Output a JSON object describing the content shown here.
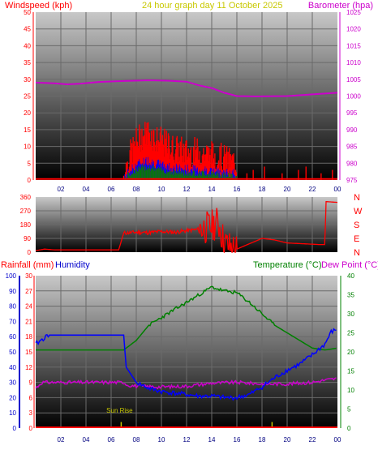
{
  "header": {
    "windspeed_label": "Windspeed (kph)",
    "title": "24 hour graph day   11 October 2025",
    "barometer_label": "Barometer (hpa)",
    "rainfall_label": "Rainfall (mm)",
    "humidity_label": "Humidity",
    "temperature_label": "Temperature (°C)",
    "dewpoint_label": "Dew Point (°C)"
  },
  "colors": {
    "wind": "#ff0000",
    "gust_blue": "#0000ff",
    "gust_green": "#008000",
    "barometer": "#cc00cc",
    "rain": "#ff0000",
    "humidity": "#0000ff",
    "temperature": "#008000",
    "dewpoint": "#cc00cc",
    "sunrise": "#c8c800"
  },
  "chart_data": [
    {
      "type": "area",
      "x_ticks": [
        "02",
        "04",
        "06",
        "08",
        "10",
        "12",
        "14",
        "16",
        "18",
        "20",
        "22",
        "00"
      ],
      "y_left_ticks": [
        "0",
        "5",
        "10",
        "15",
        "20",
        "25",
        "30",
        "35",
        "40",
        "45",
        "50"
      ],
      "y_right_ticks": [
        "975",
        "980",
        "985",
        "990",
        "995",
        "1000",
        "1005",
        "1010",
        "1015",
        "1020",
        "1025"
      ],
      "ylim_left": [
        0,
        50
      ],
      "ylim_right": [
        975,
        1025
      ],
      "series": [
        {
          "name": "Windspeed (kph)",
          "x": [
            0,
            7,
            7.5,
            8,
            8.5,
            9,
            9.5,
            10,
            11,
            12,
            13,
            14,
            15,
            15.5,
            16,
            16.1,
            24
          ],
          "values": [
            0,
            0,
            6,
            10,
            12,
            13,
            11,
            10,
            8,
            7,
            7,
            6,
            5,
            4,
            4,
            0,
            0
          ]
        },
        {
          "name": "Barometer (hpa)",
          "x": [
            0,
            1.5,
            2.5,
            3.5,
            5,
            7,
            9,
            10.5,
            12,
            13,
            14,
            15,
            16,
            17.5,
            20,
            22,
            24
          ],
          "values": [
            1004,
            1003.8,
            1003.5,
            1003.7,
            1004.2,
            1004.5,
            1004.7,
            1004.6,
            1004.3,
            1003.2,
            1002.4,
            1001,
            1000,
            999.9,
            1000,
            1000.5,
            1001
          ]
        }
      ]
    },
    {
      "type": "scatter",
      "x_ticks": [
        "02",
        "04",
        "06",
        "08",
        "10",
        "12",
        "14",
        "16",
        "18",
        "20",
        "22",
        "00"
      ],
      "y_left_ticks": [
        "0",
        "90",
        "180",
        "270",
        "360"
      ],
      "y_right_ticks": [
        "N",
        "W",
        "S",
        "E",
        "N"
      ],
      "ylim": [
        0,
        360
      ],
      "series": [
        {
          "name": "Wind direction",
          "x": [
            0,
            0.7,
            1.5,
            6.6,
            7,
            8,
            9,
            10,
            11,
            12,
            13,
            14,
            14.5,
            15,
            15.5,
            16,
            18,
            19,
            20,
            22.5,
            23,
            23.1,
            24
          ],
          "values": [
            10,
            20,
            15,
            15,
            125,
            130,
            128,
            135,
            130,
            140,
            150,
            170,
            200,
            60,
            30,
            20,
            90,
            80,
            60,
            50,
            50,
            330,
            325
          ]
        }
      ]
    },
    {
      "type": "line",
      "x_ticks": [
        "02",
        "04",
        "06",
        "08",
        "10",
        "12",
        "14",
        "16",
        "18",
        "20",
        "22",
        "00"
      ],
      "y_humidity_ticks": [
        "0",
        "10",
        "20",
        "30",
        "40",
        "50",
        "60",
        "70",
        "80",
        "90",
        "100"
      ],
      "y_rain_ticks": [
        "0",
        "3",
        "6",
        "9",
        "12",
        "15",
        "18",
        "21",
        "24",
        "27",
        "30"
      ],
      "y_temp_ticks": [
        "0",
        "5",
        "10",
        "15",
        "20",
        "25",
        "30",
        "35",
        "40"
      ],
      "ylim_humidity": [
        0,
        100
      ],
      "ylim_temp": [
        0,
        40
      ],
      "annotations": [
        {
          "label": "Sun Rise",
          "x": 6.8
        }
      ],
      "series": [
        {
          "name": "Humidity",
          "x": [
            0,
            0.5,
            1,
            2,
            3,
            4,
            5,
            6,
            7,
            7.2,
            8,
            9,
            10,
            11,
            12,
            13,
            14,
            15,
            16,
            17,
            18,
            19,
            20,
            21,
            22,
            23,
            23.5,
            24
          ],
          "values": [
            55,
            58,
            61,
            61,
            61,
            61,
            61,
            61,
            61,
            40,
            30,
            26,
            24,
            23,
            22,
            21,
            21,
            20,
            20,
            22,
            27,
            33,
            38,
            42,
            48,
            55,
            63,
            65
          ]
        },
        {
          "name": "Rainfall (mm)",
          "x": [
            0,
            24
          ],
          "values": [
            0,
            0
          ]
        },
        {
          "name": "Temperature (°C)",
          "x": [
            0,
            1,
            3,
            5,
            7,
            8,
            9,
            10,
            11,
            12,
            13,
            14,
            15,
            16,
            17,
            18,
            19,
            20,
            21,
            22,
            23,
            24
          ],
          "values": [
            20.5,
            20.5,
            20.5,
            20.5,
            20.5,
            23,
            27,
            29,
            31,
            33,
            35,
            37,
            36,
            35.5,
            33,
            30,
            27,
            25,
            23,
            21,
            20.5,
            21
          ]
        },
        {
          "name": "Dew Point (°C)",
          "x": [
            0,
            0.5,
            1,
            3,
            5,
            7,
            7.3,
            8,
            10,
            12,
            14,
            16,
            18,
            20,
            22,
            23,
            24
          ],
          "values": [
            10.5,
            12,
            12,
            12,
            12,
            12,
            11.3,
            11,
            10.8,
            11,
            11.8,
            12,
            11.6,
            11.6,
            12,
            12.6,
            13
          ]
        }
      ]
    }
  ]
}
